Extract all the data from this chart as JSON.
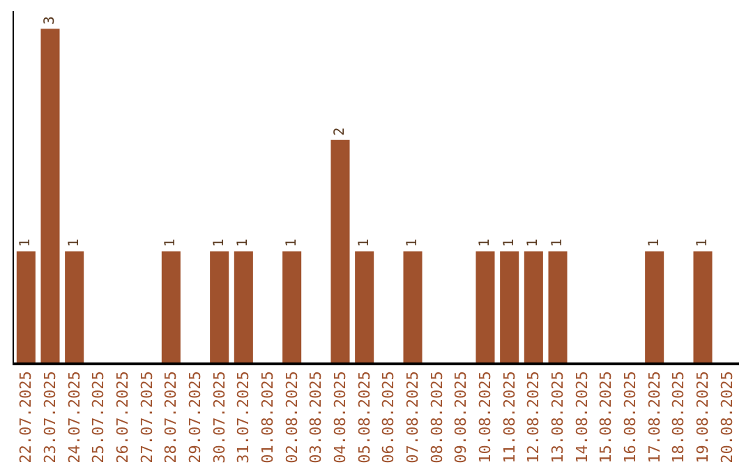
{
  "chart_data": {
    "type": "bar",
    "categories": [
      "22.07.2025",
      "23.07.2025",
      "24.07.2025",
      "25.07.2025",
      "26.07.2025",
      "27.07.2025",
      "28.07.2025",
      "29.07.2025",
      "30.07.2025",
      "31.07.2025",
      "01.08.2025",
      "02.08.2025",
      "03.08.2025",
      "04.08.2025",
      "05.08.2025",
      "06.08.2025",
      "07.08.2025",
      "08.08.2025",
      "09.08.2025",
      "10.08.2025",
      "11.08.2025",
      "12.08.2025",
      "13.08.2025",
      "14.08.2025",
      "15.08.2025",
      "16.08.2025",
      "17.08.2025",
      "18.08.2025",
      "19.08.2025",
      "20.08.2025"
    ],
    "values": [
      1,
      3,
      1,
      0,
      0,
      0,
      1,
      0,
      1,
      1,
      0,
      1,
      0,
      2,
      1,
      0,
      1,
      0,
      0,
      1,
      1,
      1,
      1,
      0,
      0,
      0,
      1,
      0,
      1,
      0
    ],
    "value_labels": [
      "1",
      "3",
      "1",
      null,
      null,
      null,
      "1",
      null,
      "1",
      "1",
      null,
      "1",
      null,
      "2",
      "1",
      null,
      "1",
      null,
      null,
      "1",
      "1",
      "1",
      "1",
      null,
      null,
      null,
      "1",
      null,
      "1",
      null
    ],
    "color": "#a0522d",
    "legend": false
  }
}
